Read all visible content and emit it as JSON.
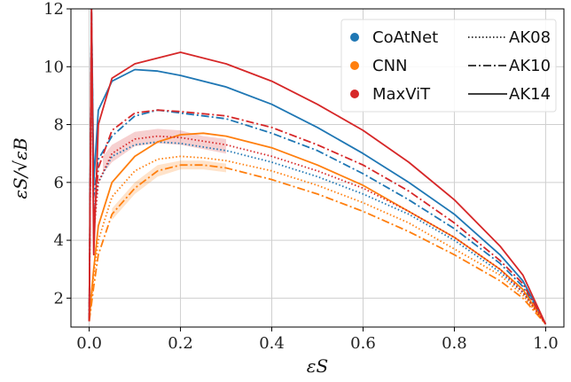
{
  "chart_data": {
    "type": "line",
    "xlabel": "εS",
    "ylabel": "εS/√εB",
    "xlim": [
      -0.04,
      1.04
    ],
    "ylim": [
      1.0,
      12.0
    ],
    "xticks": [
      0.0,
      0.2,
      0.4,
      0.6,
      0.8,
      1.0
    ],
    "xtick_labels": [
      "0.0",
      "0.2",
      "0.4",
      "0.6",
      "0.8",
      "1.0"
    ],
    "yticks": [
      2,
      4,
      6,
      8,
      10,
      12
    ],
    "ytick_labels": [
      "2",
      "4",
      "6",
      "8",
      "10",
      "12"
    ],
    "grid": true,
    "legend_position": "top-right",
    "legend_models": [
      {
        "name": "CoAtNet",
        "color": "#1f77b4"
      },
      {
        "name": "CNN",
        "color": "#ff7f0e"
      },
      {
        "name": "MaxViT",
        "color": "#d62728"
      }
    ],
    "legend_styles": [
      {
        "name": "AK08",
        "dash": "dotted"
      },
      {
        "name": "AK10",
        "dash": "dashdot"
      },
      {
        "name": "AK14",
        "dash": "solid"
      }
    ],
    "series": [
      {
        "model": "CoAtNet",
        "ak": "AK14",
        "color": "#1f77b4",
        "dash": "solid",
        "x": [
          0.0,
          0.005,
          0.01,
          0.02,
          0.05,
          0.1,
          0.15,
          0.2,
          0.3,
          0.4,
          0.5,
          0.6,
          0.7,
          0.8,
          0.9,
          0.95,
          1.0
        ],
        "y": [
          1.2,
          12.0,
          6.0,
          8.5,
          9.5,
          9.9,
          9.85,
          9.7,
          9.3,
          8.7,
          7.9,
          7.0,
          6.0,
          4.9,
          3.5,
          2.6,
          1.1
        ]
      },
      {
        "model": "CoAtNet",
        "ak": "AK10",
        "color": "#1f77b4",
        "dash": "dashdot",
        "x": [
          0.0,
          0.005,
          0.01,
          0.02,
          0.05,
          0.1,
          0.15,
          0.2,
          0.3,
          0.4,
          0.5,
          0.6,
          0.7,
          0.8,
          0.9,
          0.95,
          1.0
        ],
        "y": [
          1.2,
          12.0,
          5.5,
          6.8,
          7.6,
          8.3,
          8.5,
          8.4,
          8.2,
          7.7,
          7.1,
          6.3,
          5.4,
          4.4,
          3.2,
          2.4,
          1.1
        ]
      },
      {
        "model": "CoAtNet",
        "ak": "AK08",
        "color": "#1f77b4",
        "dash": "dotted",
        "x": [
          0.0,
          0.005,
          0.01,
          0.02,
          0.05,
          0.1,
          0.15,
          0.2,
          0.3,
          0.4,
          0.5,
          0.6,
          0.7,
          0.8,
          0.9,
          0.95,
          1.0
        ],
        "y": [
          1.2,
          11.0,
          5.0,
          6.0,
          6.9,
          7.3,
          7.4,
          7.35,
          7.1,
          6.7,
          6.2,
          5.6,
          4.9,
          4.0,
          2.9,
          2.2,
          1.1
        ]
      },
      {
        "model": "CNN",
        "ak": "AK14",
        "color": "#ff7f0e",
        "dash": "solid",
        "x": [
          0.0,
          0.005,
          0.01,
          0.02,
          0.05,
          0.1,
          0.15,
          0.2,
          0.25,
          0.3,
          0.4,
          0.5,
          0.6,
          0.7,
          0.8,
          0.9,
          0.95,
          1.0
        ],
        "y": [
          1.2,
          2.2,
          3.0,
          4.5,
          6.0,
          6.9,
          7.4,
          7.65,
          7.7,
          7.6,
          7.2,
          6.6,
          5.9,
          5.0,
          4.1,
          3.0,
          2.3,
          1.1
        ]
      },
      {
        "model": "CNN",
        "ak": "AK10",
        "color": "#ff7f0e",
        "dash": "dashdot",
        "x": [
          0.0,
          0.005,
          0.01,
          0.02,
          0.05,
          0.1,
          0.15,
          0.2,
          0.25,
          0.3,
          0.4,
          0.5,
          0.6,
          0.7,
          0.8,
          0.9,
          0.95,
          1.0
        ],
        "y": [
          1.2,
          1.8,
          2.4,
          3.5,
          4.9,
          5.8,
          6.4,
          6.6,
          6.6,
          6.5,
          6.1,
          5.6,
          5.0,
          4.3,
          3.5,
          2.6,
          2.0,
          1.1
        ]
      },
      {
        "model": "CNN",
        "ak": "AK08",
        "color": "#ff7f0e",
        "dash": "dotted",
        "x": [
          0.0,
          0.005,
          0.01,
          0.02,
          0.05,
          0.1,
          0.15,
          0.2,
          0.25,
          0.3,
          0.4,
          0.5,
          0.6,
          0.7,
          0.8,
          0.9,
          0.95,
          1.0
        ],
        "y": [
          1.2,
          2.0,
          2.8,
          4.0,
          5.5,
          6.4,
          6.8,
          6.9,
          6.85,
          6.75,
          6.4,
          5.9,
          5.3,
          4.6,
          3.7,
          2.8,
          2.1,
          1.1
        ]
      },
      {
        "model": "MaxViT",
        "ak": "AK14",
        "color": "#d62728",
        "dash": "solid",
        "x": [
          0.0,
          0.005,
          0.01,
          0.02,
          0.05,
          0.1,
          0.15,
          0.2,
          0.3,
          0.4,
          0.5,
          0.6,
          0.7,
          0.8,
          0.9,
          0.95,
          1.0
        ],
        "y": [
          1.2,
          12.0,
          3.5,
          8.0,
          9.6,
          10.1,
          10.3,
          10.5,
          10.1,
          9.5,
          8.7,
          7.8,
          6.7,
          5.4,
          3.8,
          2.8,
          1.1
        ]
      },
      {
        "model": "MaxViT",
        "ak": "AK10",
        "color": "#d62728",
        "dash": "dashdot",
        "x": [
          0.0,
          0.005,
          0.01,
          0.02,
          0.05,
          0.1,
          0.15,
          0.2,
          0.3,
          0.4,
          0.5,
          0.6,
          0.7,
          0.8,
          0.9,
          0.95,
          1.0
        ],
        "y": [
          1.2,
          12.0,
          4.5,
          6.5,
          7.8,
          8.4,
          8.5,
          8.45,
          8.3,
          7.9,
          7.3,
          6.6,
          5.7,
          4.6,
          3.3,
          2.5,
          1.1
        ]
      },
      {
        "model": "MaxViT",
        "ak": "AK08",
        "color": "#d62728",
        "dash": "dotted",
        "x": [
          0.0,
          0.005,
          0.01,
          0.02,
          0.05,
          0.1,
          0.15,
          0.2,
          0.3,
          0.4,
          0.5,
          0.6,
          0.7,
          0.8,
          0.9,
          0.95,
          1.0
        ],
        "y": [
          1.2,
          11.5,
          4.2,
          6.0,
          7.0,
          7.5,
          7.6,
          7.55,
          7.3,
          6.9,
          6.4,
          5.8,
          5.0,
          4.1,
          3.0,
          2.2,
          1.1
        ]
      }
    ],
    "bands": [
      {
        "model": "MaxViT",
        "ak": "AK08",
        "color": "#d62728",
        "x": [
          0.03,
          0.05,
          0.1,
          0.15,
          0.2,
          0.25,
          0.3
        ],
        "y_low": [
          6.3,
          6.7,
          7.25,
          7.35,
          7.3,
          7.15,
          7.0
        ],
        "y_high": [
          6.9,
          7.3,
          7.75,
          7.85,
          7.8,
          7.6,
          7.5
        ]
      },
      {
        "model": "CNN",
        "ak": "AK10",
        "color": "#ff7f0e",
        "x": [
          0.05,
          0.1,
          0.15,
          0.2,
          0.25,
          0.3
        ],
        "y_low": [
          4.7,
          5.6,
          6.2,
          6.45,
          6.45,
          6.35
        ],
        "y_high": [
          5.1,
          6.0,
          6.6,
          6.75,
          6.75,
          6.65
        ]
      }
    ]
  }
}
